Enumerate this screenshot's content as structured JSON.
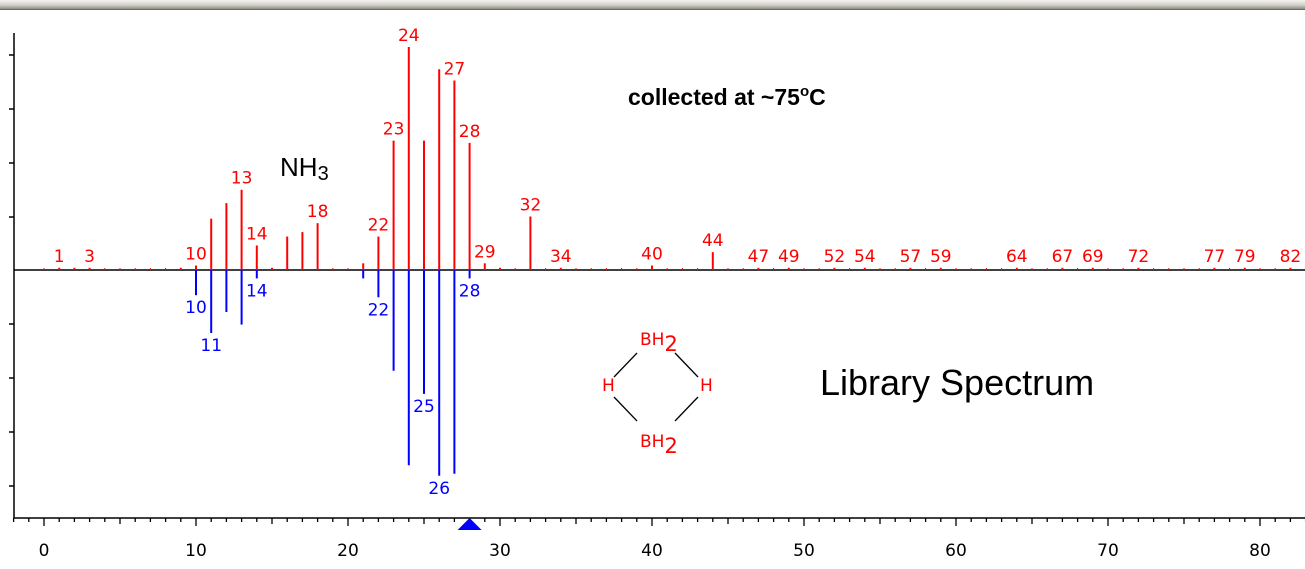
{
  "colors": {
    "sample": "#ff0000",
    "library": "#0000ff",
    "axis": "#000000",
    "marker": "#0000ff"
  },
  "annotations": {
    "collected": "collected at ~75",
    "degree": "o",
    "celsius": "C",
    "nh3_main": "NH",
    "nh3_sub": "3",
    "library": "Library Spectrum"
  },
  "molecule": {
    "bh_top": "BH",
    "bh_top_sub": "2",
    "h_left": "H",
    "h_right": "H",
    "bh_bottom": "BH",
    "bh_bottom_sub": "2"
  },
  "chart_data": {
    "type": "bar",
    "subtype": "mirrored mass spectrum",
    "xlim": [
      -2,
      83
    ],
    "xticks": [
      "0",
      "10",
      "20",
      "30",
      "40",
      "50",
      "60",
      "70",
      "80"
    ],
    "marker_x": 28,
    "series": [
      {
        "color": "#ff0000",
        "direction": "up",
        "points": [
          {
            "x": 1,
            "y": 1,
            "label": "1"
          },
          {
            "x": 2,
            "y": 1
          },
          {
            "x": 3,
            "y": 1,
            "label": "3"
          },
          {
            "x": 9,
            "y": 1
          },
          {
            "x": 10,
            "y": 2,
            "label": "10"
          },
          {
            "x": 11,
            "y": 23
          },
          {
            "x": 12,
            "y": 30
          },
          {
            "x": 13,
            "y": 36,
            "label": "13"
          },
          {
            "x": 14,
            "y": 11,
            "label": "14"
          },
          {
            "x": 15,
            "y": 1
          },
          {
            "x": 16,
            "y": 15
          },
          {
            "x": 17,
            "y": 17
          },
          {
            "x": 18,
            "y": 21,
            "label": "18"
          },
          {
            "x": 21,
            "y": 3
          },
          {
            "x": 22,
            "y": 15,
            "label": "22"
          },
          {
            "x": 23,
            "y": 58,
            "label": "23"
          },
          {
            "x": 24,
            "y": 100,
            "label": "24"
          },
          {
            "x": 25,
            "y": 58
          },
          {
            "x": 26,
            "y": 90
          },
          {
            "x": 27,
            "y": 85,
            "label": "27"
          },
          {
            "x": 28,
            "y": 57,
            "label": "28"
          },
          {
            "x": 29,
            "y": 3,
            "label": "29"
          },
          {
            "x": 30,
            "y": 1
          },
          {
            "x": 32,
            "y": 24,
            "label": "32"
          },
          {
            "x": 34,
            "y": 1,
            "label": "34"
          },
          {
            "x": 40,
            "y": 2,
            "label": "40"
          },
          {
            "x": 44,
            "y": 8,
            "label": "44"
          },
          {
            "x": 47,
            "y": 1,
            "label": "47"
          },
          {
            "x": 49,
            "y": 1,
            "label": "49"
          },
          {
            "x": 52,
            "y": 1,
            "label": "52"
          },
          {
            "x": 54,
            "y": 1,
            "label": "54"
          },
          {
            "x": 57,
            "y": 1,
            "label": "57"
          },
          {
            "x": 59,
            "y": 1,
            "label": "59"
          },
          {
            "x": 64,
            "y": 1,
            "label": "64"
          },
          {
            "x": 67,
            "y": 1,
            "label": "67"
          },
          {
            "x": 69,
            "y": 1,
            "label": "69"
          },
          {
            "x": 72,
            "y": 1,
            "label": "72"
          },
          {
            "x": 77,
            "y": 1,
            "label": "77"
          },
          {
            "x": 79,
            "y": 1,
            "label": "79"
          },
          {
            "x": 82,
            "y": 1,
            "label": "82"
          }
        ]
      },
      {
        "color": "#0000ff",
        "direction": "down",
        "points": [
          {
            "x": 10,
            "y": 12,
            "label": "10"
          },
          {
            "x": 11,
            "y": 30,
            "label": "11"
          },
          {
            "x": 12,
            "y": 20
          },
          {
            "x": 13,
            "y": 26
          },
          {
            "x": 14,
            "y": 4,
            "label": "14"
          },
          {
            "x": 21,
            "y": 4
          },
          {
            "x": 22,
            "y": 13,
            "label": "22"
          },
          {
            "x": 23,
            "y": 48
          },
          {
            "x": 24,
            "y": 93
          },
          {
            "x": 25,
            "y": 59,
            "label": "25"
          },
          {
            "x": 26,
            "y": 98,
            "label": "26"
          },
          {
            "x": 27,
            "y": 97
          },
          {
            "x": 28,
            "y": 4,
            "label": "28"
          }
        ]
      }
    ]
  }
}
